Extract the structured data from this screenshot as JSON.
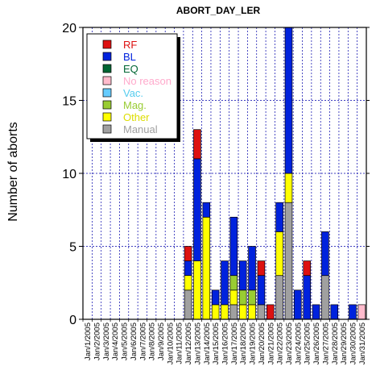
{
  "chart_data": {
    "type": "bar",
    "stacked": true,
    "title": "ABORT_DAY_LER",
    "ylabel": "Number of aborts",
    "xlabel": "",
    "ylim": [
      0,
      20
    ],
    "y_ticks": [
      0,
      5,
      10,
      15,
      20
    ],
    "grid": true,
    "legend_position": "top-left",
    "categories": [
      "Jan/1/2005",
      "Jan/2/2005",
      "Jan/3/2005",
      "Jan/4/2005",
      "Jan/5/2005",
      "Jan/6/2005",
      "Jan/7/2005",
      "Jan/8/2005",
      "Jan/9/2005",
      "Jan/10/2005",
      "Jan/11/2005",
      "Jan/12/2005",
      "Jan/13/2005",
      "Jan/14/2005",
      "Jan/15/2005",
      "Jan/16/2005",
      "Jan/17/2005",
      "Jan/18/2005",
      "Jan/19/2005",
      "Jan/20/2005",
      "Jan/21/2005",
      "Jan/22/2005",
      "Jan/23/2005",
      "Jan/24/2005",
      "Jan/25/2005",
      "Jan/26/2005",
      "Jan/27/2005",
      "Jan/28/2005",
      "Jan/29/2005",
      "Jan/30/2005",
      "Jan/31/2005"
    ],
    "series": [
      {
        "name": "Manual",
        "color": "#a0a0a0",
        "text_color": "#a0a0a0",
        "values": [
          0,
          0,
          0,
          0,
          0,
          0,
          0,
          0,
          0,
          0,
          0,
          2,
          0,
          0,
          0,
          0,
          1,
          0,
          0,
          1,
          0,
          3,
          8,
          0,
          0,
          0,
          3,
          0,
          0,
          0,
          0
        ]
      },
      {
        "name": "Other",
        "color": "#ffff00",
        "text_color": "#dddd00",
        "values": [
          0,
          0,
          0,
          0,
          0,
          0,
          0,
          0,
          0,
          0,
          0,
          1,
          4,
          7,
          1,
          1,
          1,
          1,
          1,
          0,
          0,
          3,
          2,
          0,
          0,
          0,
          0,
          0,
          0,
          0,
          0
        ]
      },
      {
        "name": "Mag.",
        "color": "#99cc33",
        "text_color": "#99cc33",
        "values": [
          0,
          0,
          0,
          0,
          0,
          0,
          0,
          0,
          0,
          0,
          0,
          0,
          0,
          0,
          0,
          0,
          1,
          1,
          1,
          0,
          0,
          0,
          0,
          0,
          0,
          0,
          0,
          0,
          0,
          0,
          0
        ]
      },
      {
        "name": "Vac.",
        "color": "#66ccff",
        "text_color": "#55ccee",
        "values": [
          0,
          0,
          0,
          0,
          0,
          0,
          0,
          0,
          0,
          0,
          0,
          0,
          0,
          0,
          0,
          0,
          0,
          0,
          0,
          0,
          0,
          0,
          0,
          0,
          0,
          0,
          0,
          0,
          0,
          0,
          0
        ]
      },
      {
        "name": "No reason",
        "color": "#ffbbcc",
        "text_color": "#ffaacc",
        "values": [
          0,
          0,
          0,
          0,
          0,
          0,
          0,
          0,
          0,
          0,
          0,
          0,
          0,
          0,
          0,
          0,
          0,
          0,
          0,
          0,
          0,
          0,
          0,
          0,
          0,
          0,
          0,
          0,
          0,
          0,
          1
        ]
      },
      {
        "name": "EQ",
        "color": "#006633",
        "text_color": "#006633",
        "values": [
          0,
          0,
          0,
          0,
          0,
          0,
          0,
          0,
          0,
          0,
          0,
          0,
          0,
          0,
          0,
          0,
          0,
          0,
          0,
          0,
          0,
          0,
          0,
          0,
          0,
          0,
          0,
          0,
          0,
          0,
          0
        ]
      },
      {
        "name": "BL",
        "color": "#0022dd",
        "text_color": "#0022dd",
        "values": [
          0,
          0,
          0,
          0,
          0,
          0,
          0,
          0,
          0,
          0,
          0,
          1,
          7,
          1,
          1,
          3,
          4,
          2,
          3,
          2,
          0,
          2,
          10,
          2,
          3,
          1,
          3,
          1,
          0,
          1,
          0
        ]
      },
      {
        "name": "RF",
        "color": "#dd1111",
        "text_color": "#dd1111",
        "values": [
          0,
          0,
          0,
          0,
          0,
          0,
          0,
          0,
          0,
          0,
          0,
          1,
          2,
          0,
          0,
          0,
          0,
          0,
          0,
          1,
          1,
          0,
          0,
          0,
          1,
          0,
          0,
          0,
          0,
          0,
          0
        ]
      }
    ],
    "legend_order": [
      "RF",
      "BL",
      "EQ",
      "No reason",
      "Vac.",
      "Mag.",
      "Other",
      "Manual"
    ]
  }
}
